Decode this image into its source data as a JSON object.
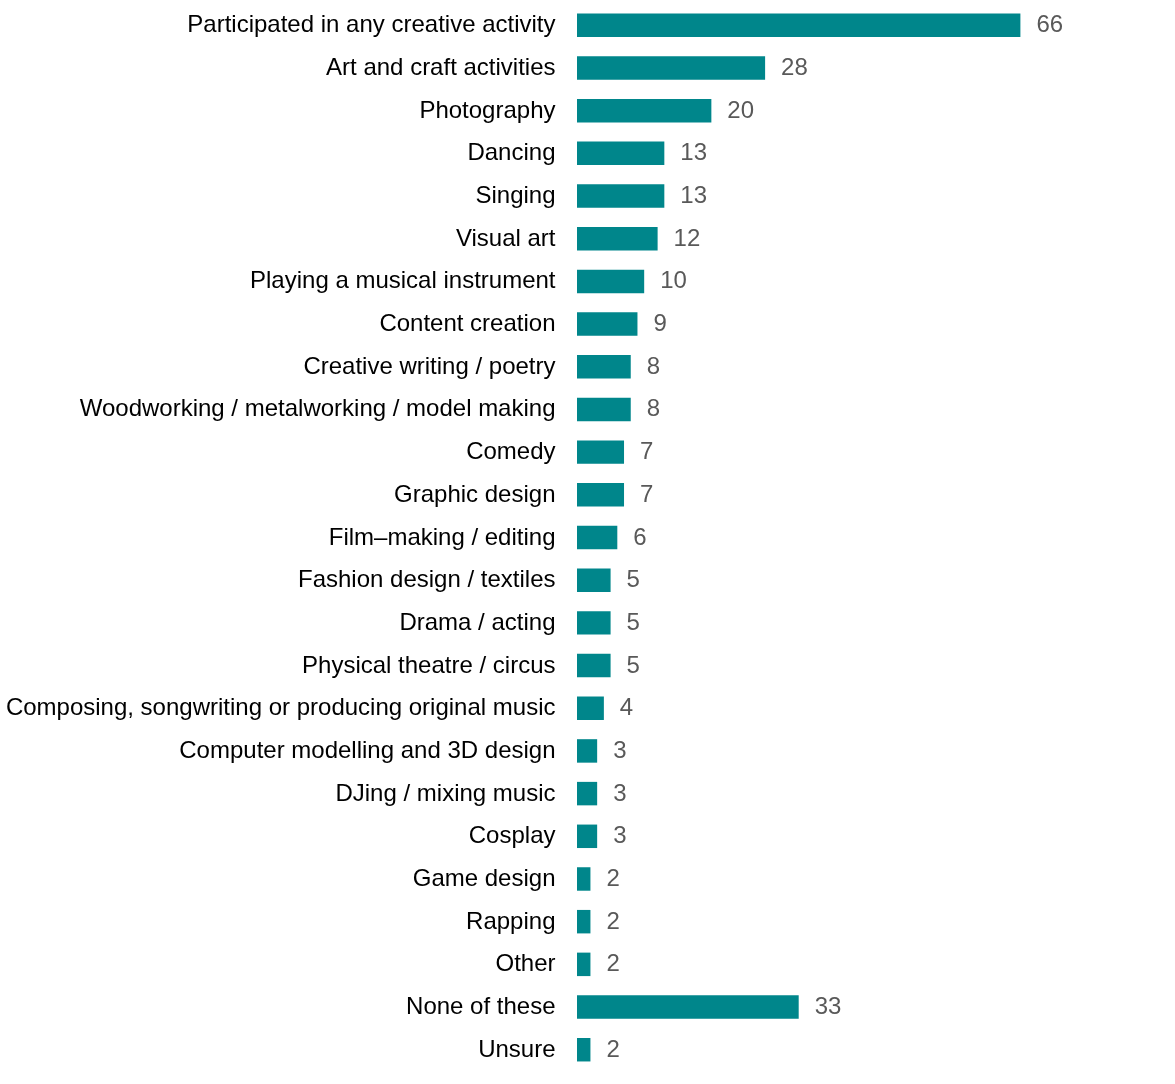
{
  "chart_data": {
    "type": "bar",
    "orientation": "horizontal",
    "data_labels": true,
    "color": "#00868b",
    "categories": [
      "Participated in any creative activity",
      "Art and craft activities",
      "Photography",
      "Dancing",
      "Singing",
      "Visual art",
      "Playing a musical instrument",
      "Content creation",
      "Creative writing / poetry",
      "Woodworking / metalworking / model making",
      "Comedy",
      "Graphic design",
      "Film–making / editing",
      "Fashion design / textiles",
      "Drama / acting",
      "Physical theatre / circus",
      "Composing, songwriting or producing original music",
      "Computer modelling and 3D design",
      "DJing / mixing music",
      "Cosplay",
      "Game design",
      "Rapping",
      "Other",
      "None of these",
      "Unsure"
    ],
    "values": [
      66,
      28,
      20,
      13,
      13,
      12,
      10,
      9,
      8,
      8,
      7,
      7,
      6,
      5,
      5,
      5,
      4,
      3,
      3,
      3,
      2,
      2,
      2,
      33,
      2
    ]
  }
}
